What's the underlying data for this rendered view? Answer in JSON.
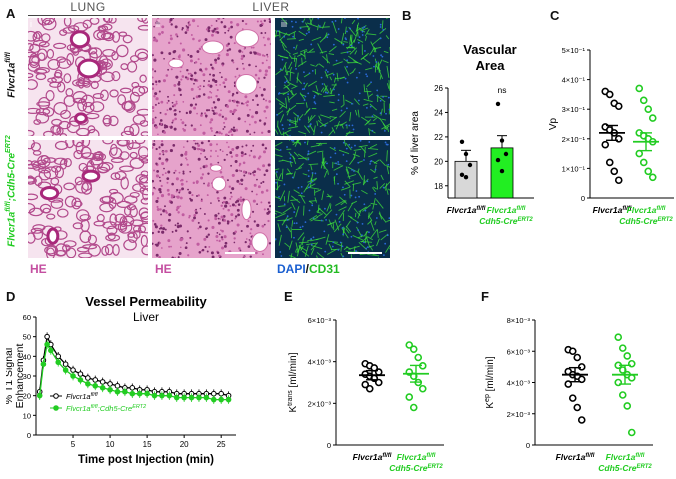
{
  "panelA": {
    "letter": "A",
    "header_lung": "LUNG",
    "header_liver": "LIVER",
    "roman": [
      "i",
      "ii",
      "iii"
    ],
    "row_labels": [
      "Flvcr1a",
      "fl/fl",
      "Flvcr1a",
      "fl/fl",
      ";Cdh5-Cre",
      "ERT2"
    ],
    "stain_he_1": "HE",
    "stain_he_2": "HE",
    "stain_dapi": "DAPI",
    "stain_slash": "/",
    "stain_cd31": "CD31",
    "colors": {
      "he_tissue": "#d36aa8",
      "he_bg": "#f1d4e7",
      "if_bg": "#0a2e4a",
      "if_green": "#3cdc3c"
    }
  },
  "chart_data": [
    {
      "panel": "B",
      "type": "bar",
      "title": "Vascular Area",
      "ylabel": "% of liver area",
      "ylim": [
        17,
        26
      ],
      "yticks": [
        18,
        20,
        22,
        24,
        26
      ],
      "categories": [
        "Flvcr1a fl/fl",
        "Flvcr1a fl/fl Cdh5-Cre ERT2"
      ],
      "values": [
        20.0,
        21.1
      ],
      "errors": [
        0.9,
        1.0
      ],
      "points": [
        [
          21.6,
          20.6,
          19.7,
          18.9,
          18.7
        ],
        [
          24.7,
          21.7,
          20.6,
          20.1,
          19.2
        ]
      ],
      "annotation": "ns",
      "colors": [
        "#d8d8d8",
        "#22ee22"
      ]
    },
    {
      "panel": "C",
      "type": "scatter",
      "ylabel": "Vp",
      "yticks": [
        "0",
        "1×10⁻¹",
        "2×10⁻¹",
        "3×10⁻¹",
        "4×10⁻¹",
        "5×10⁻¹"
      ],
      "ylim": [
        0,
        0.5
      ],
      "categories": [
        "Flvcr1a fl/fl",
        "Flvcr1a fl/fl Cdh5-Cre ERT2"
      ],
      "means": [
        0.22,
        0.19
      ],
      "sem": [
        0.025,
        0.03
      ],
      "points": [
        [
          0.36,
          0.35,
          0.32,
          0.31,
          0.24,
          0.23,
          0.22,
          0.2,
          0.18,
          0.12,
          0.09,
          0.06
        ],
        [
          0.37,
          0.33,
          0.3,
          0.27,
          0.22,
          0.21,
          0.2,
          0.19,
          0.15,
          0.12,
          0.09,
          0.07
        ]
      ]
    },
    {
      "panel": "D",
      "type": "line",
      "title": "Vessel Permeability",
      "subtitle": "Liver",
      "ylabel": "% T1 Signal Enhancement",
      "xlabel": "Time post Injection (min)",
      "xlim": [
        0,
        27
      ],
      "ylim": [
        0,
        60
      ],
      "xticks": [
        5,
        10,
        15,
        20,
        25
      ],
      "yticks": [
        0,
        10,
        20,
        30,
        40,
        50,
        60
      ],
      "x": [
        0.5,
        1.0,
        1.5,
        2,
        3,
        4,
        5,
        6,
        7,
        8,
        9,
        10,
        11,
        12,
        13,
        14,
        15,
        16,
        17,
        18,
        19,
        20,
        21,
        22,
        23,
        24,
        25,
        26
      ],
      "series": [
        {
          "name": "Flvcr1a fl/fl",
          "values": [
            22,
            38,
            50,
            46,
            40,
            36,
            33,
            31,
            29,
            28,
            27,
            26,
            25,
            24,
            24,
            23,
            23,
            22,
            22,
            22,
            21,
            21,
            21,
            21,
            21,
            21,
            21,
            20
          ],
          "color": "#000000"
        },
        {
          "name": "Flvcr1a fl/fl;Cdh5-Cre ERT2",
          "values": [
            20,
            36,
            46,
            43,
            37,
            33,
            30,
            28,
            26,
            25,
            24,
            23,
            22,
            22,
            21,
            21,
            21,
            20,
            20,
            20,
            19,
            19,
            19,
            19,
            19,
            18,
            18,
            18
          ],
          "color": "#22cc22"
        }
      ],
      "legend": [
        "Flvcr1a",
        "fl/fl",
        "Flvcr1a",
        "fl/fl",
        ";Cdh5-Cre",
        "ERT2"
      ]
    },
    {
      "panel": "E",
      "type": "scatter",
      "ylabel": "K",
      "ylabel_sup": "trans",
      "ylabel_unit": " [ml/min]",
      "ylim": [
        0,
        0.006
      ],
      "yticks": [
        "0",
        "2×10⁻³",
        "4×10⁻³",
        "6×10⁻³"
      ],
      "categories": [
        "Flvcr1a fl/fl",
        "Flvcr1a fl/fl Cdh5-Cre ERT2"
      ],
      "means": [
        0.00335,
        0.00342
      ],
      "sem": [
        0.00022,
        0.0004
      ],
      "points": [
        [
          0.0039,
          0.0038,
          0.0037,
          0.0035,
          0.0034,
          0.0033,
          0.0032,
          0.003,
          0.0029,
          0.0027
        ],
        [
          0.0048,
          0.0046,
          0.0042,
          0.0038,
          0.0035,
          0.0033,
          0.003,
          0.0027,
          0.0023,
          0.0018
        ]
      ]
    },
    {
      "panel": "F",
      "type": "scatter",
      "ylabel": "K",
      "ylabel_sup": "ep",
      "ylabel_unit": " [ml/min]",
      "ylim": [
        0,
        0.008
      ],
      "yticks": [
        "0",
        "2×10⁻³",
        "4×10⁻³",
        "6×10⁻³",
        "8×10⁻³"
      ],
      "categories": [
        "Flvcr1a fl/fl",
        "Flvcr1a fl/fl Cdh5-Cre ERT2"
      ],
      "means": [
        0.0045,
        0.0045
      ],
      "sem": [
        0.00045,
        0.0006
      ],
      "points": [
        [
          0.0061,
          0.006,
          0.0056,
          0.005,
          0.0047,
          0.0045,
          0.0044,
          0.0042,
          0.0039,
          0.003,
          0.0024,
          0.0016
        ],
        [
          0.0069,
          0.0062,
          0.0057,
          0.0052,
          0.0051,
          0.0048,
          0.0045,
          0.0043,
          0.004,
          0.0032,
          0.0025,
          0.0008
        ]
      ]
    }
  ],
  "axis_labels": {
    "genotype_1": [
      "Flvcr1a",
      "fl/fl"
    ],
    "genotype_2": [
      "Flvcr1a",
      "fl/fl",
      "Cdh5-Cre",
      "ERT2"
    ]
  }
}
